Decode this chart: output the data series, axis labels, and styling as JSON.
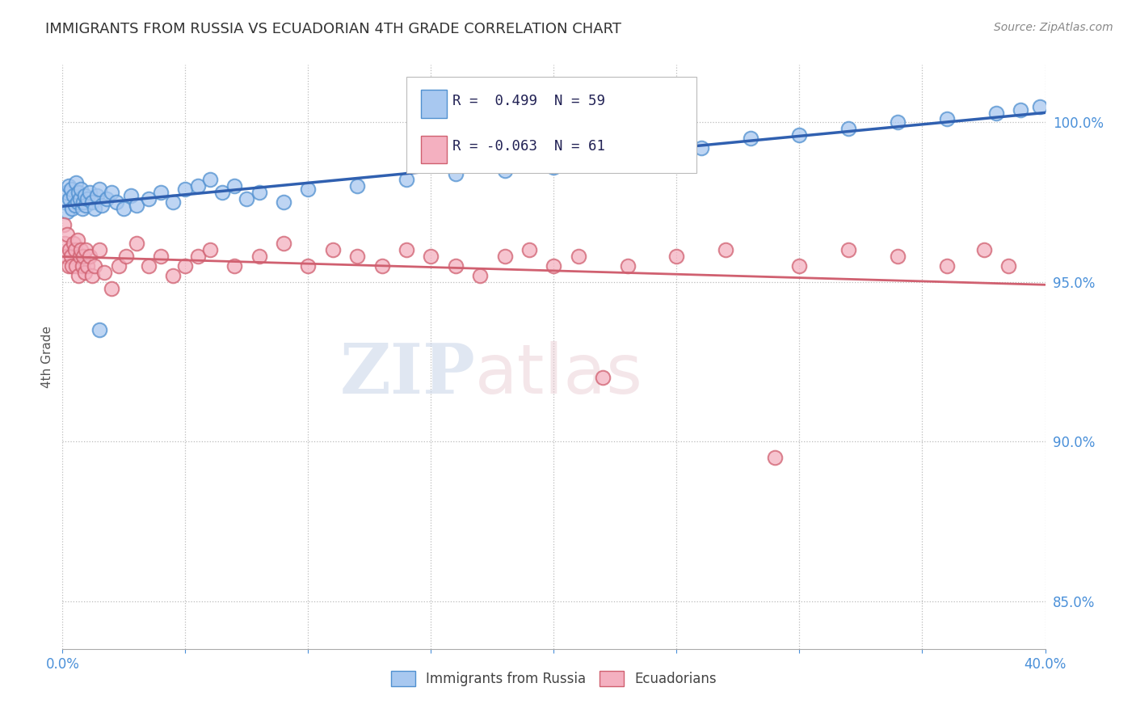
{
  "title": "IMMIGRANTS FROM RUSSIA VS ECUADORIAN 4TH GRADE CORRELATION CHART",
  "source": "Source: ZipAtlas.com",
  "ylabel": "4th Grade",
  "yticks": [
    85.0,
    90.0,
    95.0,
    100.0
  ],
  "ytick_labels": [
    "85.0%",
    "90.0%",
    "95.0%",
    "100.0%"
  ],
  "xlim": [
    0.0,
    40.0
  ],
  "ylim": [
    83.5,
    101.8
  ],
  "legend1_label": "R =  0.499  N = 59",
  "legend2_label": "R = -0.063  N = 61",
  "legend_series1": "Immigrants from Russia",
  "legend_series2": "Ecuadorians",
  "blue_color": "#A8C8F0",
  "pink_color": "#F4B0C0",
  "blue_edge_color": "#5090D0",
  "pink_edge_color": "#D06070",
  "blue_line_color": "#3060B0",
  "pink_line_color": "#D06070",
  "watermark_zip": "ZIP",
  "watermark_atlas": "atlas",
  "background_color": "#FFFFFF",
  "blue_scatter_x": [
    0.1,
    0.15,
    0.2,
    0.25,
    0.3,
    0.35,
    0.4,
    0.45,
    0.5,
    0.55,
    0.6,
    0.65,
    0.7,
    0.75,
    0.8,
    0.85,
    0.9,
    0.95,
    1.0,
    1.1,
    1.2,
    1.3,
    1.4,
    1.5,
    1.6,
    1.8,
    2.0,
    2.2,
    2.5,
    2.8,
    3.0,
    3.5,
    4.0,
    4.5,
    5.0,
    5.5,
    6.0,
    6.5,
    7.0,
    7.5,
    8.0,
    9.0,
    10.0,
    12.0,
    14.0,
    16.0,
    18.0,
    20.0,
    22.0,
    24.0,
    26.0,
    28.0,
    30.0,
    32.0,
    34.0,
    36.0,
    38.0,
    39.0,
    39.8
  ],
  "blue_scatter_y": [
    97.5,
    97.8,
    97.2,
    98.0,
    97.6,
    97.9,
    97.3,
    97.7,
    97.4,
    98.1,
    97.5,
    97.8,
    97.6,
    97.9,
    97.3,
    97.5,
    97.7,
    97.4,
    97.6,
    97.8,
    97.5,
    97.3,
    97.7,
    97.9,
    97.4,
    97.6,
    97.8,
    97.5,
    97.3,
    97.7,
    97.4,
    97.6,
    97.8,
    97.5,
    97.9,
    98.0,
    98.2,
    97.8,
    98.0,
    97.6,
    97.8,
    97.5,
    97.9,
    98.0,
    98.2,
    98.4,
    98.5,
    98.6,
    98.8,
    99.0,
    99.2,
    99.5,
    99.6,
    99.8,
    100.0,
    100.1,
    100.3,
    100.4,
    100.5
  ],
  "pink_scatter_x": [
    0.05,
    0.1,
    0.15,
    0.2,
    0.25,
    0.3,
    0.35,
    0.4,
    0.45,
    0.5,
    0.55,
    0.6,
    0.65,
    0.7,
    0.75,
    0.8,
    0.85,
    0.9,
    0.95,
    1.0,
    1.1,
    1.2,
    1.3,
    1.5,
    1.7,
    2.0,
    2.3,
    2.6,
    3.0,
    3.5,
    4.0,
    4.5,
    5.0,
    5.5,
    6.0,
    7.0,
    8.0,
    9.0,
    10.0,
    11.0,
    12.0,
    13.0,
    14.0,
    15.0,
    16.0,
    17.0,
    18.0,
    19.0,
    20.0,
    21.0,
    22.0,
    23.0,
    25.0,
    27.0,
    29.0,
    30.0,
    32.0,
    34.0,
    36.0,
    37.5,
    38.5
  ],
  "pink_scatter_y": [
    96.8,
    96.2,
    95.8,
    96.5,
    95.5,
    96.0,
    95.8,
    95.5,
    96.2,
    96.0,
    95.5,
    96.3,
    95.2,
    95.8,
    96.0,
    95.5,
    95.8,
    95.3,
    96.0,
    95.5,
    95.8,
    95.2,
    95.5,
    96.0,
    95.3,
    94.8,
    95.5,
    95.8,
    96.2,
    95.5,
    95.8,
    95.2,
    95.5,
    95.8,
    96.0,
    95.5,
    95.8,
    96.2,
    95.5,
    96.0,
    95.8,
    95.5,
    96.0,
    95.8,
    95.5,
    95.2,
    95.8,
    96.0,
    95.5,
    95.8,
    92.0,
    95.5,
    95.8,
    96.0,
    89.5,
    95.5,
    96.0,
    95.8,
    95.5,
    96.0,
    95.5
  ],
  "blue_one_outlier_x": 1.5,
  "blue_one_outlier_y": 93.5
}
